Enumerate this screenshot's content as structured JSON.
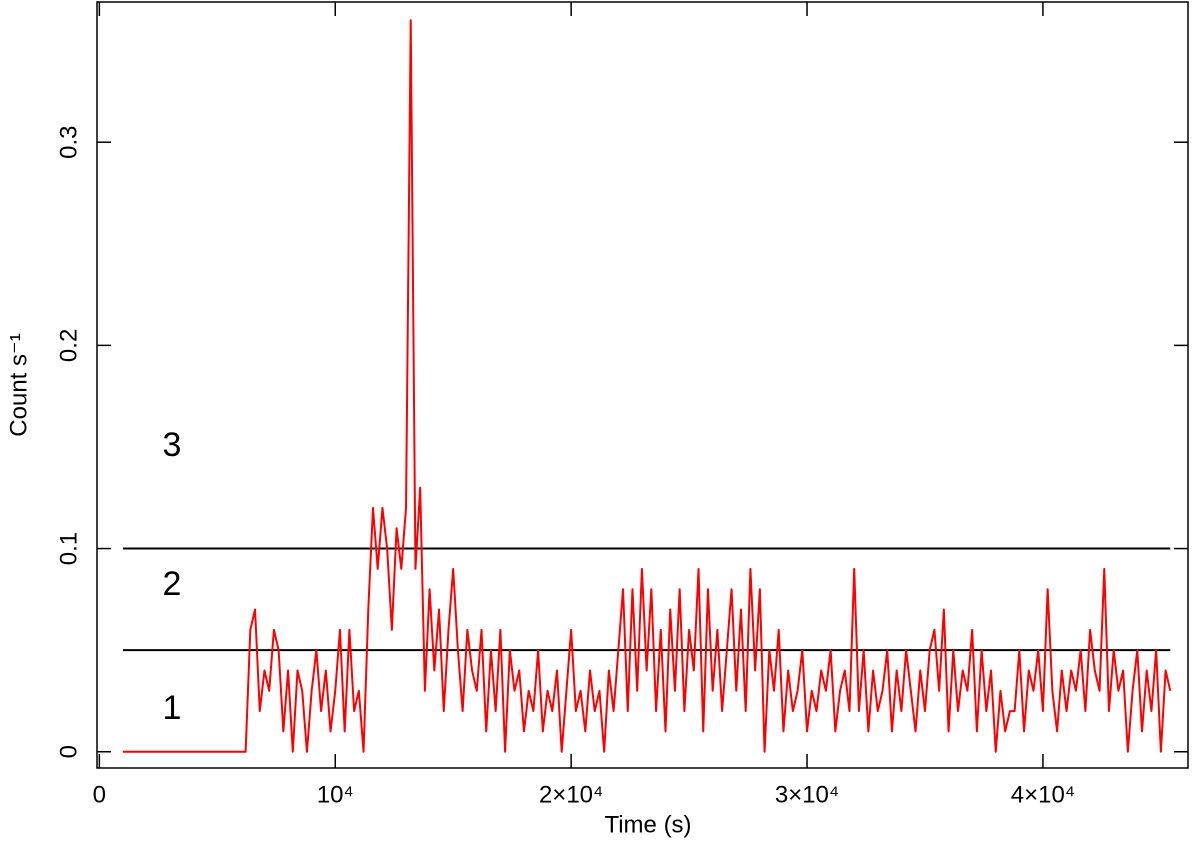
{
  "chart_data": {
    "type": "line",
    "xlabel": "Time (s)",
    "ylabel": "Count s⁻¹",
    "xlim": [
      -100,
      46150
    ],
    "ylim": [
      -0.008,
      0.369
    ],
    "xticks": [
      0,
      {
        "value": 10000,
        "label": "10⁴"
      },
      {
        "value": 20000,
        "label": "2×10⁴"
      },
      {
        "value": 30000,
        "label": "3×10⁴"
      },
      {
        "value": 40000,
        "label": "4×10⁴"
      }
    ],
    "yticks": [
      0,
      0.1,
      0.2,
      0.3
    ],
    "hlines": [
      0.05,
      0.1
    ],
    "hline_color": "#000000",
    "regions": [
      "1",
      "2",
      "3"
    ],
    "series": [
      {
        "color": "#ff0000",
        "x": [
          1000,
          6200,
          6400,
          6600,
          6800,
          7000,
          7200,
          7400,
          7600,
          7800,
          8000,
          8200,
          8400,
          8600,
          8800,
          9000,
          9200,
          9400,
          9600,
          9800,
          10000,
          10200,
          10400,
          10600,
          10800,
          11000,
          11200,
          11400,
          11600,
          11800,
          12000,
          12200,
          12400,
          12600,
          12800,
          13000,
          13200,
          13400,
          13600,
          13800,
          14000,
          14200,
          14400,
          14600,
          14800,
          15000,
          15200,
          15400,
          15600,
          15800,
          16000,
          16200,
          16400,
          16600,
          16800,
          17000,
          17200,
          17400,
          17600,
          17800,
          18000,
          18200,
          18400,
          18600,
          18800,
          19000,
          19200,
          19400,
          19600,
          19800,
          20000,
          20200,
          20400,
          20600,
          20800,
          21000,
          21200,
          21400,
          21600,
          21800,
          22000,
          22200,
          22400,
          22600,
          22800,
          23000,
          23200,
          23400,
          23600,
          23800,
          24000,
          24200,
          24400,
          24600,
          24800,
          25000,
          25200,
          25400,
          25600,
          25800,
          26000,
          26200,
          26400,
          26600,
          26800,
          27000,
          27200,
          27400,
          27600,
          27800,
          28000,
          28200,
          28400,
          28600,
          28800,
          29000,
          29200,
          29400,
          29600,
          29800,
          30000,
          30200,
          30400,
          30600,
          30800,
          31000,
          31200,
          31400,
          31600,
          31800,
          32000,
          32200,
          32400,
          32600,
          32800,
          33000,
          33200,
          33400,
          33600,
          33800,
          34000,
          34200,
          34400,
          34600,
          34800,
          35000,
          35200,
          35400,
          35600,
          35800,
          36000,
          36200,
          36400,
          36600,
          36800,
          37000,
          37200,
          37400,
          37600,
          37800,
          38000,
          38200,
          38400,
          38600,
          38800,
          39000,
          39200,
          39400,
          39600,
          39800,
          40000,
          40200,
          40400,
          40600,
          40800,
          41000,
          41200,
          41400,
          41600,
          41800,
          42000,
          42200,
          42400,
          42600,
          42800,
          43000,
          43200,
          43400,
          43600,
          43800,
          44000,
          44200,
          44400,
          44600,
          44800,
          45000,
          45200,
          45400
        ],
        "values": [
          0,
          0,
          0.06,
          0.07,
          0.02,
          0.04,
          0.03,
          0.06,
          0.05,
          0.01,
          0.04,
          0,
          0.04,
          0.03,
          0,
          0.03,
          0.05,
          0.02,
          0.04,
          0.01,
          0.03,
          0.06,
          0.01,
          0.06,
          0.02,
          0.03,
          0,
          0.07,
          0.12,
          0.09,
          0.12,
          0.1,
          0.06,
          0.11,
          0.09,
          0.12,
          0.36,
          0.09,
          0.13,
          0.03,
          0.08,
          0.04,
          0.07,
          0.02,
          0.06,
          0.09,
          0.05,
          0.02,
          0.06,
          0.04,
          0.03,
          0.06,
          0.01,
          0.05,
          0.02,
          0.06,
          0,
          0.05,
          0.03,
          0.04,
          0.01,
          0.03,
          0.02,
          0.05,
          0.01,
          0.03,
          0.02,
          0.04,
          0,
          0.03,
          0.06,
          0.02,
          0.03,
          0.01,
          0.04,
          0.02,
          0.03,
          0,
          0.04,
          0.02,
          0.05,
          0.08,
          0.02,
          0.08,
          0.03,
          0.09,
          0.04,
          0.08,
          0.02,
          0.06,
          0.01,
          0.07,
          0.03,
          0.08,
          0.02,
          0.06,
          0.04,
          0.09,
          0.01,
          0.08,
          0.03,
          0.06,
          0.02,
          0.05,
          0.08,
          0.03,
          0.07,
          0.02,
          0.09,
          0.04,
          0.08,
          0,
          0.05,
          0.03,
          0.06,
          0.01,
          0.04,
          0.02,
          0.03,
          0.05,
          0.01,
          0.03,
          0.02,
          0.04,
          0.03,
          0.05,
          0.01,
          0.03,
          0.04,
          0.02,
          0.09,
          0.02,
          0.05,
          0.01,
          0.04,
          0.02,
          0.03,
          0.05,
          0.01,
          0.04,
          0.02,
          0.05,
          0.03,
          0.01,
          0.04,
          0.02,
          0.05,
          0.06,
          0.03,
          0.07,
          0.01,
          0.05,
          0.02,
          0.04,
          0.03,
          0.06,
          0.01,
          0.05,
          0.02,
          0.04,
          0,
          0.03,
          0.01,
          0.02,
          0.02,
          0.05,
          0.01,
          0.04,
          0.03,
          0.05,
          0.02,
          0.08,
          0.03,
          0.01,
          0.04,
          0.02,
          0.04,
          0.03,
          0.05,
          0.02,
          0.06,
          0.04,
          0.03,
          0.09,
          0.02,
          0.05,
          0.03,
          0.04,
          0,
          0.03,
          0.05,
          0.01,
          0.04,
          0.02,
          0.05,
          0,
          0.04,
          0.03
        ]
      }
    ]
  }
}
